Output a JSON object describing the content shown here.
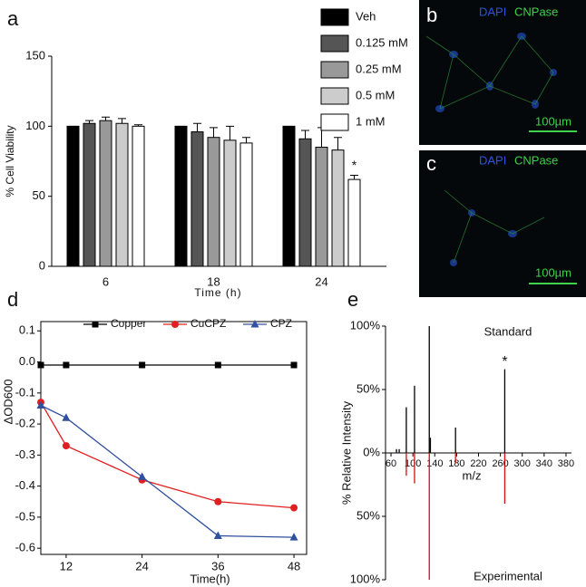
{
  "chart_data": [
    {
      "type": "bar",
      "panel_label": "a",
      "ylabel": "% Cell Viability",
      "xlabel": "Time (h)",
      "categories": [
        "6",
        "18",
        "24"
      ],
      "series": [
        {
          "name": "Veh",
          "color": "#000000",
          "values": [
            100,
            100,
            100
          ],
          "errors": [
            0,
            0,
            0
          ]
        },
        {
          "name": "0.125 mM",
          "color": "#555555",
          "values": [
            102,
            96,
            91
          ],
          "errors": [
            2,
            6,
            6
          ]
        },
        {
          "name": "0.25 mM",
          "color": "#999999",
          "values": [
            104,
            92,
            85
          ],
          "errors": [
            2.5,
            7,
            14
          ]
        },
        {
          "name": "0.5 mM",
          "color": "#cccccc",
          "values": [
            102,
            90,
            83
          ],
          "errors": [
            3.5,
            10,
            9
          ]
        },
        {
          "name": "1 mM",
          "color": "#ffffff",
          "values": [
            100,
            88,
            62
          ],
          "errors": [
            1,
            4,
            3
          ]
        }
      ],
      "annotation": "*",
      "ylim": [
        0,
        150
      ],
      "yticks": [
        0,
        50,
        100,
        150
      ]
    },
    {
      "type": "line",
      "panel_label": "d",
      "ylabel": "ΔOD600",
      "xlabel": "Time(h)",
      "x": [
        8,
        12,
        24,
        36,
        48
      ],
      "series": [
        {
          "name": "Copper",
          "color": "#000000",
          "marker": "square",
          "values": [
            -0.01,
            -0.01,
            -0.01,
            -0.01,
            -0.01
          ]
        },
        {
          "name": "CuCPZ",
          "color": "#e02020",
          "marker": "circle",
          "values": [
            -0.13,
            -0.27,
            -0.38,
            -0.45,
            -0.47
          ]
        },
        {
          "name": "CPZ",
          "color": "#3050a0",
          "marker": "triangle",
          "values": [
            -0.14,
            -0.18,
            -0.37,
            -0.56,
            -0.565
          ]
        }
      ],
      "xlim": [
        8,
        50
      ],
      "xticks": [
        12,
        24,
        36,
        48
      ],
      "ylim": [
        -0.62,
        0.13
      ],
      "yticks": [
        0.1,
        {
          "value": 0,
          "label": "0.0"
        },
        -0.1,
        -0.2,
        -0.3,
        -0.4,
        -0.5,
        -0.6
      ]
    },
    {
      "type": "stem",
      "panel_label": "e",
      "ylabel": "% Relative Intensity",
      "xlabel": "m/z",
      "series": [
        {
          "name": "Standard",
          "color": "#000000",
          "x": [
            70,
            75,
            88,
            103,
            130,
            132,
            178,
            268
          ],
          "values": [
            3,
            3,
            36,
            53,
            100,
            12,
            20,
            66
          ]
        },
        {
          "name": "Experimental",
          "color": "#d01010",
          "x": [
            88,
            103,
            130,
            178,
            268
          ],
          "values": [
            -18,
            -24,
            -100,
            -8,
            -40
          ]
        }
      ],
      "annotation": "*",
      "xlim": [
        50,
        390
      ],
      "xticks": [
        60,
        100,
        140,
        180,
        220,
        260,
        300,
        340,
        380
      ],
      "ylim": [
        -100,
        100
      ],
      "yticks": [
        {
          "value": 100,
          "label": "100%"
        },
        {
          "value": 50,
          "label": "50%"
        },
        {
          "value": 0,
          "label": "0%"
        },
        {
          "value": -50,
          "label": "50%"
        },
        {
          "value": -100,
          "label": "100%"
        }
      ]
    }
  ],
  "images": [
    {
      "panel_label": "b",
      "stain1": "DAPI",
      "stain2": "CNPase",
      "scale": "100µm"
    },
    {
      "panel_label": "c",
      "stain1": "DAPI",
      "stain2": "CNPase",
      "scale": "100µm"
    }
  ]
}
